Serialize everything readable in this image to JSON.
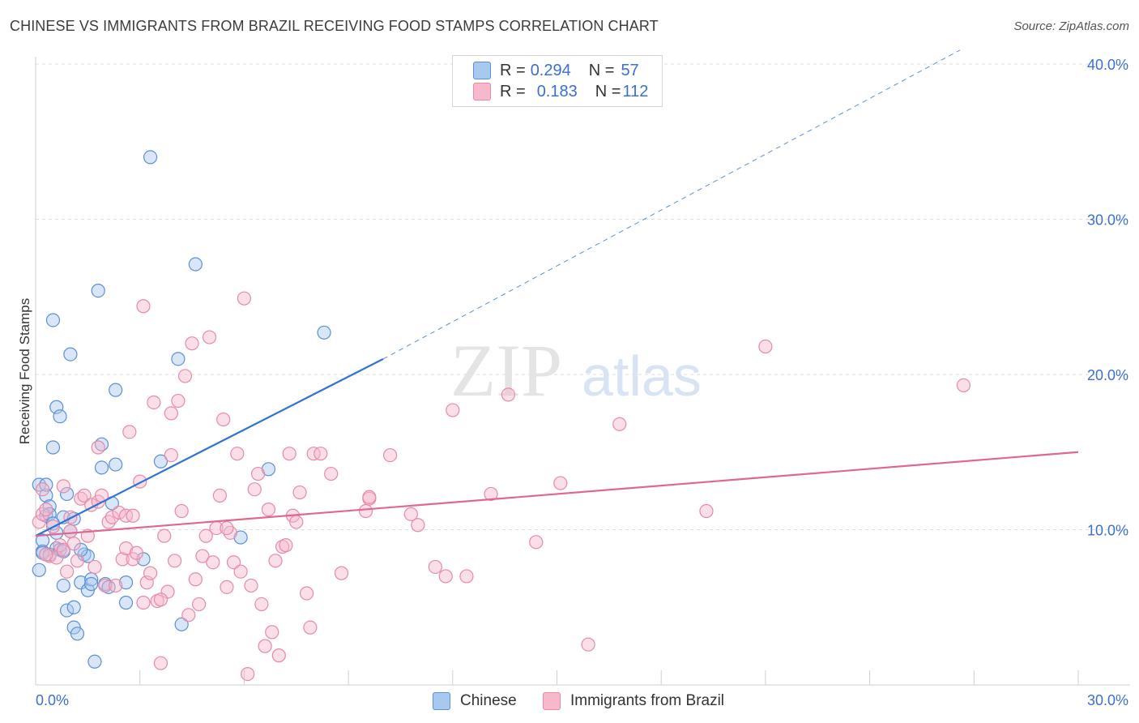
{
  "header": {
    "title": "CHINESE VS IMMIGRANTS FROM BRAZIL RECEIVING FOOD STAMPS CORRELATION CHART",
    "source": "Source: ZipAtlas.com"
  },
  "watermark": {
    "zip": "ZIP",
    "atlas": "atlas"
  },
  "legend_top": {
    "rows": [
      {
        "r_label": "R = ",
        "r_value": "0.294",
        "n_label": "N = ",
        "n_value": "57",
        "color": "#a8c8f0"
      },
      {
        "r_label": "R = ",
        "r_value": "0.183",
        "n_label": "N = ",
        "n_value": "112",
        "color": "#f7b8cb"
      }
    ]
  },
  "legend_bottom": {
    "items": [
      {
        "label": "Chinese",
        "color": "#a8c8f0"
      },
      {
        "label": "Immigrants from Brazil",
        "color": "#f7b8cb"
      }
    ]
  },
  "chart_data": {
    "type": "scatter",
    "title": "CHINESE VS IMMIGRANTS FROM BRAZIL RECEIVING FOOD STAMPS CORRELATION CHART",
    "xlabel": "",
    "ylabel": "Receiving Food Stamps",
    "xlim": [
      0,
      30
    ],
    "ylim": [
      0,
      40
    ],
    "x_tick_labels": [
      "0.0%",
      "30.0%"
    ],
    "y_tick_labels": [
      "10.0%",
      "20.0%",
      "30.0%",
      "40.0%"
    ],
    "y_ticks": [
      10,
      20,
      30,
      40
    ],
    "grid": true,
    "legend_placement": "top-center",
    "series": [
      {
        "name": "Chinese",
        "color": "#5b8fd6",
        "fill": "#a8c8f0",
        "trend_color": "#2f74d0",
        "trend": {
          "x0": 0,
          "y0": 9.6,
          "x1": 10.0,
          "y1": 21.0,
          "dashed_to_x": 26.6,
          "dashed_to_y": 40.9
        },
        "points": [
          [
            0.1,
            12.9
          ],
          [
            0.2,
            9.3
          ],
          [
            0.2,
            8.6
          ],
          [
            0.3,
            12.2
          ],
          [
            0.3,
            10.9
          ],
          [
            0.4,
            11.5
          ],
          [
            0.4,
            11.0
          ],
          [
            0.4,
            8.4
          ],
          [
            0.5,
            23.5
          ],
          [
            0.5,
            15.3
          ],
          [
            0.6,
            17.9
          ],
          [
            0.6,
            8.8
          ],
          [
            0.6,
            9.8
          ],
          [
            0.7,
            8.7
          ],
          [
            0.7,
            17.3
          ],
          [
            0.8,
            6.4
          ],
          [
            0.8,
            10.8
          ],
          [
            0.8,
            8.6
          ],
          [
            0.9,
            4.8
          ],
          [
            0.9,
            12.3
          ],
          [
            1.0,
            21.3
          ],
          [
            1.0,
            9.9
          ],
          [
            1.1,
            5.0
          ],
          [
            1.1,
            10.7
          ],
          [
            1.1,
            3.7
          ],
          [
            1.2,
            3.3
          ],
          [
            1.3,
            6.6
          ],
          [
            1.4,
            8.4
          ],
          [
            1.5,
            6.1
          ],
          [
            1.5,
            8.3
          ],
          [
            1.6,
            6.8
          ],
          [
            1.6,
            6.5
          ],
          [
            1.7,
            1.5
          ],
          [
            1.8,
            25.4
          ],
          [
            1.9,
            15.5
          ],
          [
            1.9,
            14.0
          ],
          [
            2.0,
            6.5
          ],
          [
            2.2,
            11.7
          ],
          [
            2.3,
            19.0
          ],
          [
            2.3,
            14.2
          ],
          [
            2.6,
            6.6
          ],
          [
            2.6,
            5.3
          ],
          [
            3.1,
            8.1
          ],
          [
            3.3,
            34.0
          ],
          [
            3.6,
            14.4
          ],
          [
            4.1,
            21.0
          ],
          [
            4.2,
            3.9
          ],
          [
            4.6,
            27.1
          ],
          [
            5.9,
            9.5
          ],
          [
            6.7,
            13.9
          ],
          [
            8.3,
            22.7
          ],
          [
            0.1,
            7.4
          ],
          [
            0.2,
            8.5
          ],
          [
            0.3,
            12.9
          ],
          [
            0.5,
            10.4
          ],
          [
            1.3,
            8.7
          ],
          [
            2.1,
            6.3
          ]
        ]
      },
      {
        "name": "Immigrants from Brazil",
        "color": "#e68aa6",
        "fill": "#f7b8cb",
        "trend_color": "#e06890",
        "trend": {
          "x0": 0,
          "y0": 9.6,
          "x1": 30.0,
          "y1": 15.0
        },
        "points": [
          [
            0.1,
            10.5
          ],
          [
            0.2,
            12.6
          ],
          [
            0.2,
            11.0
          ],
          [
            0.3,
            11.3
          ],
          [
            0.4,
            8.3
          ],
          [
            0.5,
            10.2
          ],
          [
            0.6,
            8.2
          ],
          [
            0.7,
            9.0
          ],
          [
            0.8,
            8.7
          ],
          [
            0.8,
            12.8
          ],
          [
            0.9,
            7.3
          ],
          [
            1.0,
            9.9
          ],
          [
            1.1,
            9.1
          ],
          [
            1.2,
            8.0
          ],
          [
            1.3,
            12.0
          ],
          [
            1.4,
            12.2
          ],
          [
            1.5,
            9.6
          ],
          [
            1.6,
            11.6
          ],
          [
            1.7,
            7.6
          ],
          [
            1.8,
            15.3
          ],
          [
            1.8,
            11.8
          ],
          [
            1.9,
            12.2
          ],
          [
            2.0,
            6.4
          ],
          [
            2.1,
            10.5
          ],
          [
            2.2,
            10.8
          ],
          [
            2.3,
            6.4
          ],
          [
            2.4,
            11.1
          ],
          [
            2.5,
            8.1
          ],
          [
            2.6,
            10.9
          ],
          [
            2.6,
            8.8
          ],
          [
            2.7,
            16.3
          ],
          [
            2.8,
            8.1
          ],
          [
            2.9,
            8.5
          ],
          [
            3.0,
            13.1
          ],
          [
            3.1,
            24.4
          ],
          [
            3.1,
            5.3
          ],
          [
            3.2,
            6.6
          ],
          [
            3.3,
            7.2
          ],
          [
            3.4,
            18.2
          ],
          [
            3.5,
            5.4
          ],
          [
            3.6,
            1.4
          ],
          [
            3.7,
            9.6
          ],
          [
            3.8,
            6.0
          ],
          [
            3.9,
            17.5
          ],
          [
            3.9,
            14.8
          ],
          [
            4.0,
            8.0
          ],
          [
            4.1,
            18.3
          ],
          [
            4.2,
            11.2
          ],
          [
            4.3,
            19.9
          ],
          [
            4.4,
            4.5
          ],
          [
            4.5,
            22.0
          ],
          [
            4.6,
            6.8
          ],
          [
            4.7,
            5.2
          ],
          [
            4.8,
            8.3
          ],
          [
            4.9,
            9.6
          ],
          [
            5.0,
            22.4
          ],
          [
            5.1,
            7.9
          ],
          [
            5.2,
            10.1
          ],
          [
            5.3,
            12.2
          ],
          [
            5.4,
            17.1
          ],
          [
            5.5,
            6.3
          ],
          [
            5.6,
            9.8
          ],
          [
            5.7,
            7.9
          ],
          [
            5.8,
            14.9
          ],
          [
            5.9,
            7.3
          ],
          [
            6.0,
            24.9
          ],
          [
            6.1,
            0.7
          ],
          [
            6.2,
            6.4
          ],
          [
            6.3,
            12.6
          ],
          [
            6.4,
            13.6
          ],
          [
            6.5,
            5.2
          ],
          [
            6.6,
            2.5
          ],
          [
            6.7,
            11.3
          ],
          [
            6.8,
            3.4
          ],
          [
            6.9,
            8.0
          ],
          [
            7.0,
            1.9
          ],
          [
            7.1,
            8.9
          ],
          [
            7.2,
            9.0
          ],
          [
            7.3,
            14.9
          ],
          [
            7.4,
            10.9
          ],
          [
            7.5,
            10.5
          ],
          [
            7.6,
            12.4
          ],
          [
            7.8,
            5.9
          ],
          [
            7.9,
            3.7
          ],
          [
            8.0,
            14.9
          ],
          [
            8.2,
            14.9
          ],
          [
            8.5,
            13.6
          ],
          [
            8.8,
            7.2
          ],
          [
            9.5,
            11.2
          ],
          [
            9.6,
            12.0
          ],
          [
            9.6,
            12.1
          ],
          [
            10.2,
            14.8
          ],
          [
            10.8,
            11.0
          ],
          [
            11.0,
            10.3
          ],
          [
            11.5,
            7.6
          ],
          [
            11.8,
            7.0
          ],
          [
            12.0,
            17.7
          ],
          [
            12.4,
            7.0
          ],
          [
            13.1,
            12.3
          ],
          [
            13.6,
            18.7
          ],
          [
            14.4,
            9.2
          ],
          [
            15.1,
            13.0
          ],
          [
            15.9,
            2.6
          ],
          [
            16.8,
            16.8
          ],
          [
            19.3,
            11.2
          ],
          [
            21.0,
            21.8
          ],
          [
            26.7,
            19.3
          ],
          [
            0.3,
            8.4
          ],
          [
            1.0,
            10.8
          ],
          [
            2.8,
            10.9
          ],
          [
            3.6,
            5.5
          ],
          [
            5.5,
            10.1
          ]
        ]
      }
    ]
  }
}
